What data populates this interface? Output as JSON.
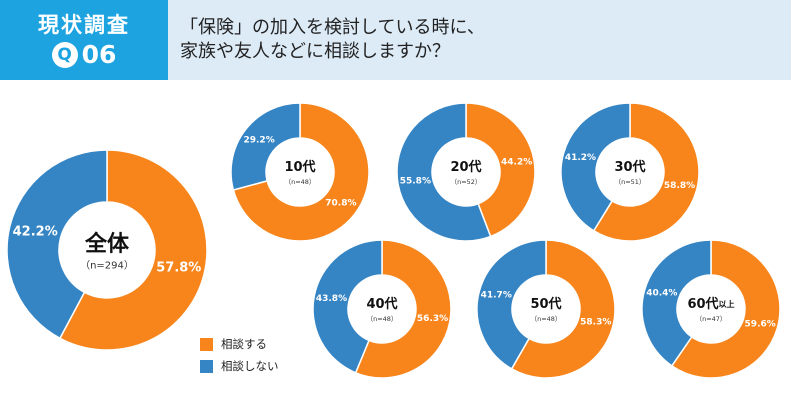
{
  "header": {
    "badge_title": "現状調査",
    "badge_q": "Q",
    "badge_num": "06",
    "question_line1": "「保険」の加入を検討している時に、",
    "question_line2": "家族や友人などに相談しますか？"
  },
  "colors": {
    "consult": "#f7851b",
    "not_consult": "#3584c4",
    "header_bg": "#ddebf7",
    "badge_bg": "#1ca3e0"
  },
  "legend": {
    "consult": "相談する",
    "not_consult": "相談しない"
  },
  "chart_data": {
    "type": "pie",
    "series_labels": [
      "相談する",
      "相談しない"
    ],
    "charts": [
      {
        "id": "all",
        "label": "全体",
        "suffix": "",
        "n": "（n=294）",
        "values": [
          57.8,
          42.2
        ],
        "value_labels": [
          "57.8%",
          "42.2%"
        ]
      },
      {
        "id": "10s",
        "label": "10代",
        "suffix": "",
        "n": "（n=48）",
        "values": [
          70.8,
          29.2
        ],
        "value_labels": [
          "70.8%",
          "29.2%"
        ]
      },
      {
        "id": "20s",
        "label": "20代",
        "suffix": "",
        "n": "（n=52）",
        "values": [
          44.2,
          55.8
        ],
        "value_labels": [
          "44.2%",
          "55.8%"
        ]
      },
      {
        "id": "30s",
        "label": "30代",
        "suffix": "",
        "n": "（n=51）",
        "values": [
          58.8,
          41.2
        ],
        "value_labels": [
          "58.8%",
          "41.2%"
        ]
      },
      {
        "id": "40s",
        "label": "40代",
        "suffix": "",
        "n": "（n=48）",
        "values": [
          56.3,
          43.8
        ],
        "value_labels": [
          "56.3%",
          "43.8%"
        ]
      },
      {
        "id": "50s",
        "label": "50代",
        "suffix": "",
        "n": "（n=48）",
        "values": [
          58.3,
          41.7
        ],
        "value_labels": [
          "58.3%",
          "41.7%"
        ]
      },
      {
        "id": "60s",
        "label": "60代",
        "suffix": "以上",
        "n": "（n=47）",
        "values": [
          59.6,
          40.4
        ],
        "value_labels": [
          "59.6%",
          "40.4%"
        ]
      }
    ]
  }
}
